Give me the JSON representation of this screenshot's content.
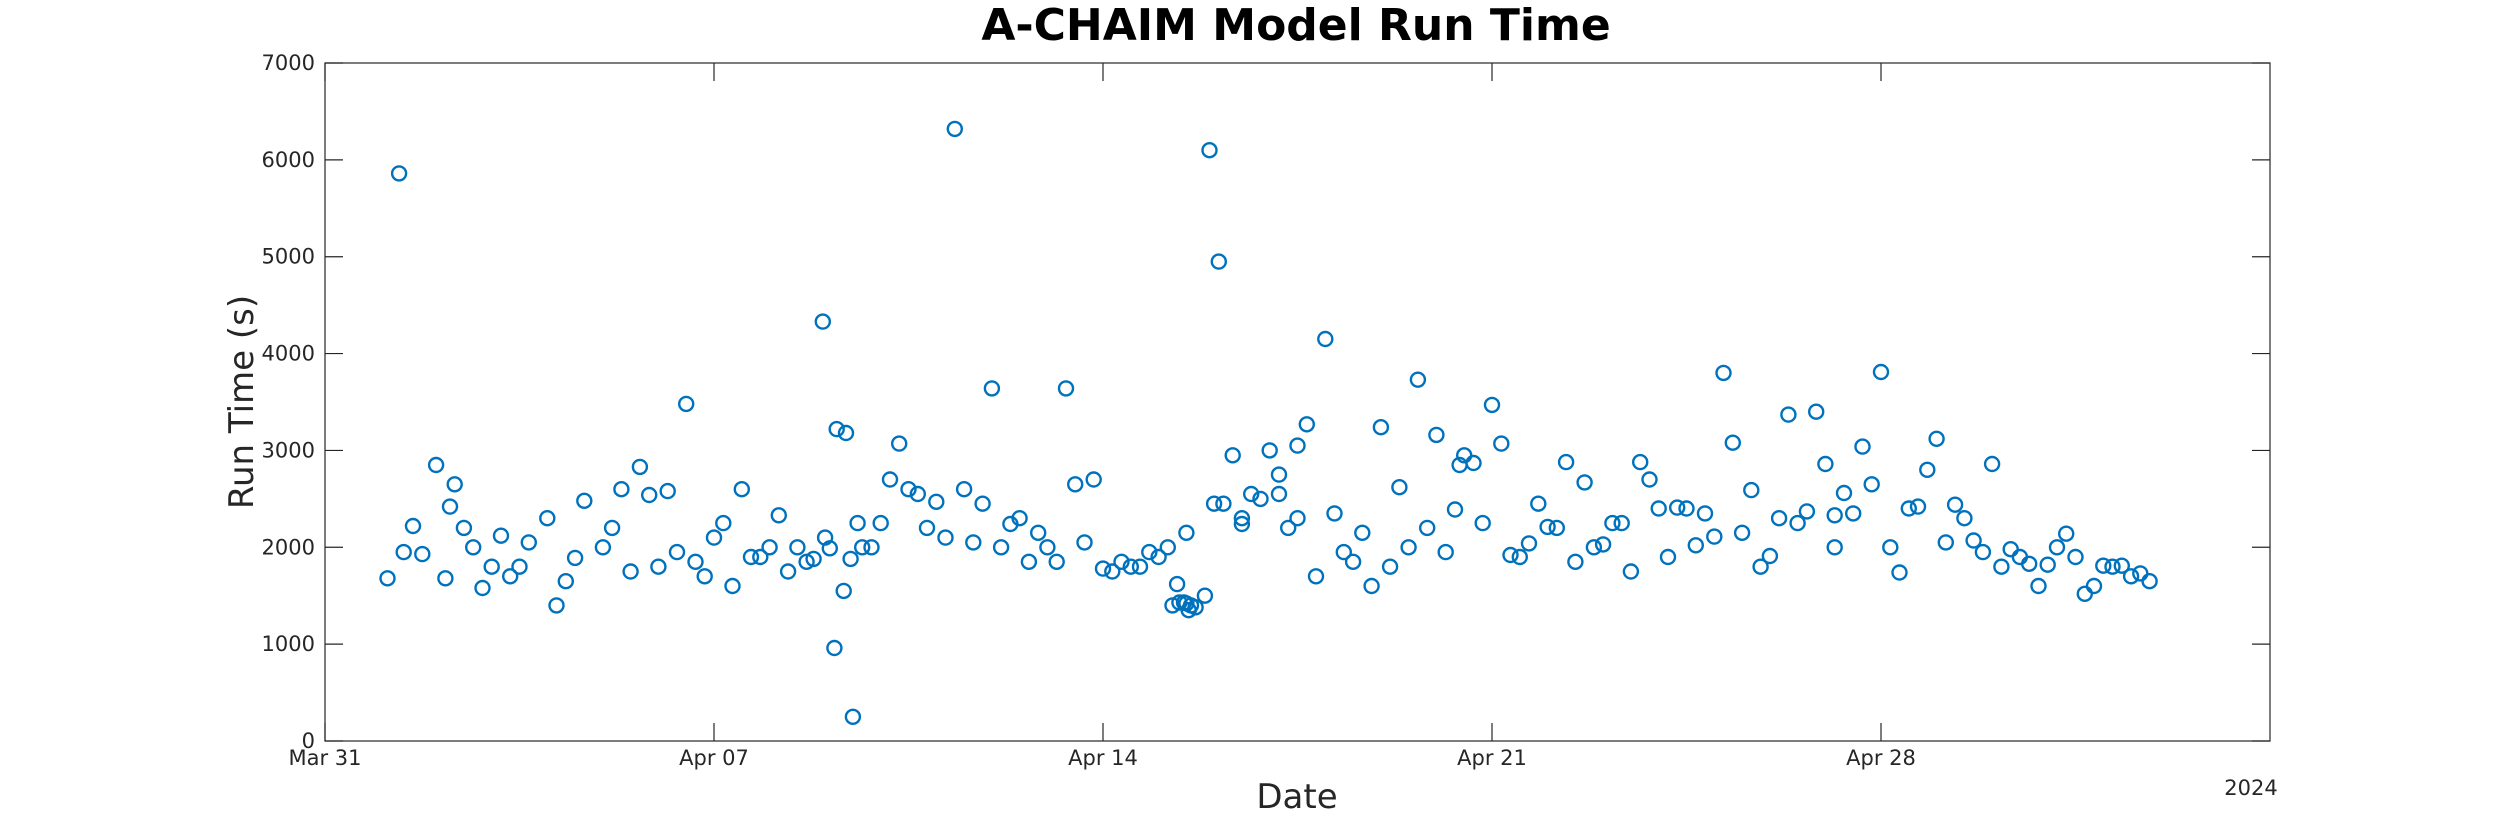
{
  "chart_data": {
    "type": "scatter",
    "title": "A-CHAIM Model Run Time",
    "xlabel": "Date",
    "ylabel": "Run Time (s)",
    "year_label": "2024",
    "x_axis_type": "date",
    "x_range": [
      "2024-03-31",
      "2024-05-05"
    ],
    "ylim": [
      0,
      7000
    ],
    "y_ticks": [
      0,
      1000,
      2000,
      3000,
      4000,
      5000,
      6000,
      7000
    ],
    "x_ticks": [
      {
        "date": "2024-03-31",
        "label": "Mar 31"
      },
      {
        "date": "2024-04-07",
        "label": "Apr 07"
      },
      {
        "date": "2024-04-14",
        "label": "Apr 14"
      },
      {
        "date": "2024-04-21",
        "label": "Apr 21"
      },
      {
        "date": "2024-04-28",
        "label": "Apr 28"
      }
    ],
    "grid": false,
    "marker": "open-circle",
    "colors": {
      "series": "#0072BD",
      "axis": "#262626"
    },
    "series": [
      {
        "x": [
          "2024-04-01T08:00",
          "2024-04-01T14:00",
          "2024-04-02T00:00",
          "2024-04-02T08:00",
          "2024-04-02T16:00",
          "2024-04-03T00:00",
          "2024-04-03T08:00",
          "2024-04-03T16:00",
          "2024-04-04T00:00",
          "2024-04-04T08:00",
          "2024-04-04T16:00",
          "2024-04-05T00:00",
          "2024-04-05T08:00",
          "2024-04-05T16:00",
          "2024-04-06T00:00",
          "2024-04-06T08:00",
          "2024-04-06T16:00",
          "2024-04-07T00:00",
          "2024-04-07T08:00",
          "2024-04-07T16:00",
          "2024-04-08T00:00",
          "2024-04-08T08:00",
          "2024-04-08T16:00",
          "2024-04-09T00:00",
          "2024-04-09T08:00",
          "2024-04-09T14:00",
          "2024-04-09T20:00",
          "2024-04-10T04:00",
          "2024-04-10T12:00",
          "2024-04-10T20:00",
          "2024-04-11T04:00",
          "2024-04-11T12:00",
          "2024-04-11T20:00",
          "2024-04-12T04:00",
          "2024-04-12T12:00",
          "2024-04-12T20:00",
          "2024-04-13T04:00",
          "2024-04-13T12:00",
          "2024-04-13T20:00",
          "2024-04-14T04:00",
          "2024-04-14T12:00",
          "2024-04-14T20:00",
          "2024-04-15T04:00",
          "2024-04-15T12:00",
          "2024-04-15T20:00",
          "2024-04-16T04:00",
          "2024-04-16T12:00",
          "2024-04-16T20:00",
          "2024-04-17T04:00",
          "2024-04-17T12:00",
          "2024-04-17T20:00",
          "2024-04-18T04:00",
          "2024-04-18T12:00",
          "2024-04-18T20:00",
          "2024-04-19T04:00",
          "2024-04-19T12:00",
          "2024-04-19T20:00",
          "2024-04-20T04:00",
          "2024-04-20T12:00",
          "2024-04-20T20:00",
          "2024-04-21T04:00",
          "2024-04-21T12:00",
          "2024-04-21T20:00",
          "2024-04-22T04:00",
          "2024-04-22T12:00",
          "2024-04-22T20:00",
          "2024-04-23T04:00",
          "2024-04-23T12:00",
          "2024-04-23T20:00",
          "2024-04-24T04:00",
          "2024-04-24T12:00",
          "2024-04-24T20:00",
          "2024-04-25T04:00",
          "2024-04-25T12:00",
          "2024-04-25T20:00",
          "2024-04-26T04:00",
          "2024-04-26T12:00",
          "2024-04-26T20:00",
          "2024-04-27T04:00",
          "2024-04-27T12:00",
          "2024-04-27T20:00",
          "2024-04-28T04:00",
          "2024-04-28T12:00",
          "2024-04-28T20:00",
          "2024-04-29T04:00",
          "2024-04-29T12:00",
          "2024-04-29T20:00",
          "2024-04-30T04:00",
          "2024-04-30T12:00",
          "2024-04-30T20:00",
          "2024-05-01T04:00",
          "2024-05-01T12:00",
          "2024-05-01T20:00",
          "2024-05-02T04:00",
          "2024-05-02T12:00",
          "2024-05-02T20:00",
          "2024-04-01T03:00",
          "2024-04-01T18:00",
          "2024-04-02T04:00",
          "2024-04-02T12:00",
          "2024-04-02T20:00",
          "2024-04-04T12:00",
          "2024-04-05T20:00",
          "2024-04-06T04:00",
          "2024-04-06T12:00",
          "2024-04-08T19:00",
          "2024-04-09T02:00",
          "2024-04-09T05:00",
          "2024-04-09T09:00",
          "2024-04-09T11:00",
          "2024-04-09T16:00",
          "2024-04-10T08:00",
          "2024-04-10T16:00",
          "2024-04-11T00:00",
          "2024-04-11T16:00",
          "2024-04-12T00:00",
          "2024-04-12T16:00",
          "2024-04-13T00:00",
          "2024-04-15T06:00",
          "2024-04-15T09:00",
          "2024-04-15T14:00",
          "2024-04-15T16:00",
          "2024-04-15T22:00",
          "2024-04-16T02:00",
          "2024-04-16T08:00",
          "2024-04-16T16:00",
          "2024-04-17T00:00",
          "2024-04-17T08:00",
          "2024-04-17T16:00",
          "2024-04-18T08:00",
          "2024-04-19T00:00",
          "2024-04-19T16:00",
          "2024-04-20T00:00",
          "2024-04-20T08:00",
          "2024-04-20T16:00",
          "2024-04-21T00:00",
          "2024-04-21T16:00",
          "2024-04-22T00:00",
          "2024-04-22T16:00",
          "2024-04-23T08:00",
          "2024-04-23T16:00",
          "2024-04-24T00:00",
          "2024-04-24T16:00",
          "2024-04-25T08:00",
          "2024-04-25T16:00",
          "2024-04-26T00:00",
          "2024-04-26T16:00",
          "2024-04-27T00:00",
          "2024-04-27T08:00",
          "2024-04-27T16:00",
          "2024-04-28T00:00",
          "2024-04-28T16:00",
          "2024-04-29T00:00",
          "2024-04-29T16:00",
          "2024-04-30T00:00",
          "2024-04-30T16:00",
          "2024-05-01T00:00",
          "2024-05-01T16:00",
          "2024-05-02T00:00",
          "2024-05-02T16:00",
          "2024-04-01T10:00",
          "2024-04-02T06:00",
          "2024-04-03T04:00",
          "2024-04-03T12:00",
          "2024-04-04T04:00",
          "2024-04-05T04:00",
          "2024-04-05T12:00",
          "2024-04-06T20:00",
          "2024-04-07T04:00",
          "2024-04-07T12:00",
          "2024-04-07T20:00",
          "2024-04-08T04:00",
          "2024-04-08T12:00",
          "2024-04-08T23:00",
          "2024-04-09T04:00",
          "2024-04-09T12:00",
          "2024-04-10T00:00",
          "2024-04-11T08:00",
          "2024-04-12T08:00",
          "2024-04-13T08:00",
          "2024-04-13T16:00",
          "2024-04-14T00:00",
          "2024-04-14T08:00",
          "2024-04-14T16:00",
          "2024-04-15T00:00",
          "2024-04-15T08:00",
          "2024-04-15T11:00",
          "2024-04-15T12:00",
          "2024-04-15T13:00",
          "2024-04-16T00:00",
          "2024-04-16T12:00",
          "2024-04-17T04:00",
          "2024-04-17T12:00",
          "2024-04-18T00:00",
          "2024-04-18T16:00",
          "2024-04-19T08:00",
          "2024-04-20T10:00",
          "2024-04-21T08:00",
          "2024-04-22T08:00",
          "2024-04-23T00:00",
          "2024-04-24T08:00",
          "2024-04-25T00:00",
          "2024-04-26T08:00",
          "2024-04-27T04:00",
          "2024-04-28T08:00",
          "2024-04-29T08:00",
          "2024-04-30T08:00",
          "2024-05-01T08:00",
          "2024-05-02T08:00"
        ],
        "y": [
          5860,
          2220,
          2850,
          2650,
          2000,
          1800,
          1700,
          2050,
          2300,
          1650,
          2480,
          2000,
          2600,
          2830,
          1800,
          1950,
          1850,
          2100,
          1600,
          1900,
          2000,
          1750,
          1850,
          2100,
          1550,
          2250,
          2000,
          2700,
          2600,
          2200,
          2100,
          2600,
          2450,
          2000,
          2300,
          2150,
          1850,
          2650,
          2700,
          1750,
          1800,
          1950,
          2000,
          2150,
          1500,
          2450,
          2300,
          2500,
          2550,
          2300,
          1700,
          2350,
          1850,
          1600,
          1800,
          2000,
          2200,
          1950,
          2950,
          2250,
          3070,
          1900,
          2450,
          2200,
          1850,
          2000,
          2250,
          1750,
          2700,
          1900,
          2400,
          2350,
          3800,
          2150,
          1800,
          2300,
          2250,
          3400,
          2000,
          2350,
          2650,
          2000,
          2400,
          2800,
          2050,
          2300,
          1950,
          1800,
          1900,
          1600,
          2000,
          1900,
          1600,
          1800,
          1700,
          1650,
          1680,
          1930,
          1680,
          2200,
          1580,
          1890,
          2540,
          2580,
          3480,
          1880,
          1990,
          3220,
          3180,
          1880,
          2000,
          3070,
          2550,
          2470,
          2050,
          3640,
          1850,
          2000,
          1400,
          1430,
          1400,
          1380,
          6100,
          4950,
          2950,
          2550,
          3000,
          2200,
          3270,
          1950,
          3240,
          3730,
          3160,
          2390,
          2870,
          3470,
          2040,
          2210,
          2670,
          2250,
          2880,
          2400,
          2020,
          3080,
          2590,
          1910,
          2370,
          2860,
          2560,
          3040,
          3810,
          2420,
          3120,
          2070,
          2860,
          1830,
          1820,
          1520,
          1810,
          1730,
          1950,
          2420,
          2120,
          1800,
          1400,
          2200,
          1750,
          1700,
          2250,
          2600,
          1900,
          2330,
          2000,
          4330,
          960,
          250,
          2250,
          6320,
          2240,
          3640,
          2050,
          1780,
          1850,
          1800,
          1900,
          1620,
          1430,
          1420,
          1350,
          2450,
          2240,
          2750,
          3050,
          4150,
          2150,
          2620,
          2850,
          1920,
          2880,
          2030,
          2410,
          2110,
          3370,
          2330,
          1740,
          2440,
          1980,
          2140,
          1810
        ]
      }
    ]
  }
}
